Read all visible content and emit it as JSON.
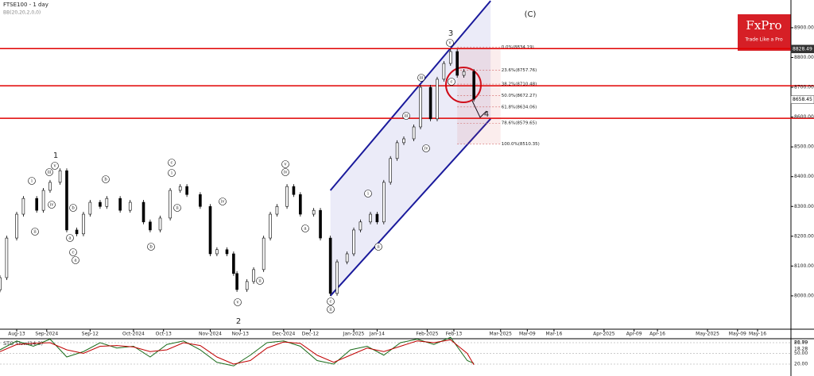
{
  "chart_data": [
    {
      "type": "candlestick",
      "title": "FTSE100 - 1 day",
      "subtitle": "BB(20,20,2,0,0)",
      "x": [
        0,
        2,
        5,
        7,
        11,
        13,
        15,
        18,
        20,
        23,
        25,
        27,
        30,
        32,
        36,
        39,
        43,
        45,
        48,
        51,
        54,
        56,
        60,
        63,
        65,
        68,
        70,
        71,
        74,
        76,
        79,
        81,
        83,
        86,
        88,
        90,
        94,
        96,
        99,
        101,
        104,
        106,
        108,
        111,
        113,
        115,
        117,
        119,
        121,
        124,
        126,
        129,
        131,
        133,
        135,
        137,
        139,
        142
      ],
      "open": [
        8020,
        8061,
        8194,
        8274,
        8327,
        8287,
        8354,
        8381,
        8420,
        8221,
        8208,
        8274,
        8314,
        8300,
        8327,
        8287,
        8314,
        8248,
        8221,
        8261,
        8354,
        8367,
        8340,
        8300,
        8141,
        8155,
        8141,
        8075,
        8021,
        8048,
        8088,
        8194,
        8274,
        8300,
        8367,
        8340,
        8274,
        8287,
        8194,
        8008,
        8114,
        8141,
        8221,
        8248,
        8274,
        8248,
        8381,
        8461,
        8514,
        8527,
        8567,
        8700,
        8594,
        8727,
        8780,
        8820,
        8740,
        8753
      ],
      "close": [
        8061,
        8194,
        8274,
        8327,
        8287,
        8354,
        8381,
        8420,
        8221,
        8208,
        8274,
        8314,
        8300,
        8327,
        8287,
        8314,
        8248,
        8221,
        8261,
        8354,
        8367,
        8340,
        8300,
        8141,
        8155,
        8141,
        8075,
        8021,
        8048,
        8088,
        8194,
        8274,
        8300,
        8367,
        8340,
        8274,
        8287,
        8194,
        8008,
        8114,
        8141,
        8221,
        8248,
        8274,
        8248,
        8381,
        8461,
        8514,
        8527,
        8567,
        8700,
        8594,
        8727,
        8780,
        8820,
        8740,
        8753,
        8660
      ],
      "up_color": "#ffffff",
      "down_color": "#000000",
      "xlim": [
        0,
        237
      ],
      "ylim": [
        7888,
        8993
      ],
      "xticks": [
        {
          "value": 5,
          "label": "Aug-13"
        },
        {
          "value": 14,
          "label": "Sep-2024"
        },
        {
          "value": 27,
          "label": "Sep-12"
        },
        {
          "value": 40,
          "label": "Oct-2024"
        },
        {
          "value": 49,
          "label": "Oct-13"
        },
        {
          "value": 63,
          "label": "Nov-2024"
        },
        {
          "value": 72,
          "label": "Nov-13"
        },
        {
          "value": 85,
          "label": "Dec-2024"
        },
        {
          "value": 93,
          "label": "Dec-12"
        },
        {
          "value": 106,
          "label": "Jan-2025"
        },
        {
          "value": 113,
          "label": "Jan-14"
        },
        {
          "value": 128,
          "label": "Feb-2025"
        },
        {
          "value": 136,
          "label": "Feb-13"
        },
        {
          "value": 150,
          "label": "Mar-2025"
        },
        {
          "value": 158,
          "label": "Mar-09"
        },
        {
          "value": 166,
          "label": "Mar-16"
        },
        {
          "value": 181,
          "label": "Apr-2025"
        },
        {
          "value": 190,
          "label": "Apr-09"
        },
        {
          "value": 197,
          "label": "Apr-16"
        },
        {
          "value": 212,
          "label": "May-2025"
        },
        {
          "value": 221,
          "label": "May-09"
        },
        {
          "value": 227,
          "label": "May-16"
        }
      ],
      "yticks": [
        {
          "value": 8000,
          "label": "8000.00"
        },
        {
          "value": 8100,
          "label": "8100.00"
        },
        {
          "value": 8200,
          "label": "8200.00"
        },
        {
          "value": 8300,
          "label": "8300.00"
        },
        {
          "value": 8400,
          "label": "8400.00"
        },
        {
          "value": 8500,
          "label": "8500.00"
        },
        {
          "value": 8600,
          "label": "8600.00"
        },
        {
          "value": 8700,
          "label": "8700.00"
        },
        {
          "value": 8800,
          "label": "8800.00"
        },
        {
          "value": 8900,
          "label": "8900.00"
        }
      ],
      "levels": [
        8830,
        8705,
        8596
      ],
      "level_color": "#e00000",
      "channel_x": [
        99,
        147
      ],
      "channel_upper": [
        8354,
        8990
      ],
      "channel_lower": [
        8000,
        8594
      ],
      "channel_color": "#1a1a9c",
      "fib": [
        {
          "value": 8834.19,
          "label": "0.0%(8834.19)"
        },
        {
          "value": 8757.76,
          "label": "23.6%(8757.76)"
        },
        {
          "value": 8710.48,
          "label": "38.2%(8710.48)"
        },
        {
          "value": 8672.27,
          "label": "50.0%(8672.27)"
        },
        {
          "value": 8634.06,
          "label": "61.8%(8634.06)"
        },
        {
          "value": 8579.65,
          "label": "78.6%(8579.65)"
        },
        {
          "value": 8510.35,
          "label": "100.0%(8510.35)"
        }
      ],
      "price_labels": [
        8828.49,
        8658.45
      ],
      "waves": [
        "1",
        "2",
        "3",
        "4",
        "(C)"
      ],
      "sub_waves": [
        "i",
        "iii",
        "v",
        "iv",
        "ii",
        "a",
        "b",
        "c",
        "a",
        "b",
        "c",
        "b",
        "ii",
        "iv",
        "i",
        "v",
        "iv",
        "a",
        "ii",
        "v",
        "c",
        "ii",
        "i",
        "ii",
        "iii",
        "iv",
        "iii",
        "v",
        "c"
      ],
      "brand": "FxPro",
      "tagline": "Trade Like a Pro"
    },
    {
      "type": "line",
      "title": "STO Slow(14,3)",
      "x": [
        0,
        5,
        10,
        15,
        20,
        25,
        30,
        35,
        40,
        45,
        50,
        55,
        60,
        65,
        70,
        75,
        80,
        85,
        90,
        95,
        100,
        105,
        110,
        115,
        120,
        125,
        130,
        135,
        140,
        142
      ],
      "series": [
        {
          "color": "#1a6b1a",
          "values": [
            60,
            85,
            70,
            90,
            40,
            55,
            80,
            65,
            70,
            40,
            75,
            85,
            60,
            25,
            15,
            45,
            80,
            85,
            70,
            30,
            20,
            60,
            70,
            45,
            80,
            90,
            75,
            95,
            30,
            22
          ]
        },
        {
          "color": "#c00000",
          "values": [
            55,
            75,
            78,
            80,
            60,
            50,
            70,
            72,
            68,
            55,
            60,
            80,
            72,
            40,
            20,
            30,
            65,
            82,
            78,
            45,
            25,
            45,
            65,
            55,
            70,
            85,
            80,
            88,
            50,
            18
          ]
        }
      ],
      "xlim": [
        0,
        237
      ],
      "ylim": [
        0,
        100
      ],
      "yticks": [
        {
          "value": 80,
          "label": "80.00"
        },
        {
          "value": 50,
          "label": "50.00"
        },
        {
          "value": 20,
          "label": "20.00"
        }
      ],
      "last_labels": [
        "21.79",
        "18.28"
      ]
    }
  ]
}
